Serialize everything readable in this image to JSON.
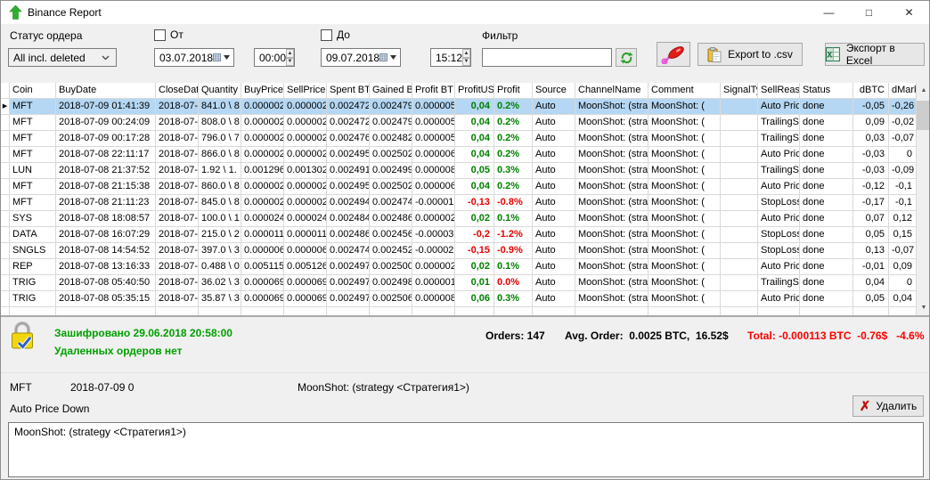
{
  "window": {
    "title": "Binance Report"
  },
  "toolbar": {
    "status_label": "Статус ордера",
    "status_value": "All incl. deleted",
    "from_label": "От",
    "from_date": "03.07.2018",
    "from_time": "00:00",
    "to_label": "До",
    "to_date": "09.07.2018",
    "to_time": "15:12",
    "filter_label": "Фильтр",
    "filter_value": "",
    "export_csv_label": "Export to .csv",
    "export_excel_label": "Экспорт в Excel"
  },
  "table": {
    "columns": [
      "Coin",
      "BuyDate",
      "CloseDat",
      "Quantity",
      "BuyPrice",
      "SellPrice",
      "Spent BT",
      "Gained B",
      "Profit BT",
      "ProfitUSI",
      "Profit",
      "Source",
      "ChannelName",
      "Comment",
      "SignalTyp",
      "SellReaso",
      "Status",
      "dBTC",
      "dMarke"
    ],
    "rows": [
      {
        "selected": true,
        "coin": "MFT",
        "buy_date": "2018-07-09 01:41:39",
        "close_date": "2018-07-",
        "quantity": "841.0 \\ 8",
        "buy_price": "0.000002",
        "sell_price": "0.000002",
        "spent_btc": "0.002472",
        "gained_btc": "0.002479",
        "profit_btc": "0.000005",
        "profit_usd": "0,04",
        "profit_pct": "0.2%",
        "usd_neg": false,
        "pct_neg": false,
        "source": "Auto",
        "channel": "MoonShot: (strat",
        "comment": "MoonShot: (",
        "signal_type": "",
        "sell_reason": "Auto Pric",
        "status": "done",
        "d_btc": "-0,05",
        "d_market": "-0,26"
      },
      {
        "selected": false,
        "coin": "MFT",
        "buy_date": "2018-07-09 00:24:09",
        "close_date": "2018-07-",
        "quantity": "808.0 \\ 8",
        "buy_price": "0.000002",
        "sell_price": "0.000002",
        "spent_btc": "0.002472",
        "gained_btc": "0.002479",
        "profit_btc": "0.000005",
        "profit_usd": "0,04",
        "profit_pct": "0.2%",
        "usd_neg": false,
        "pct_neg": false,
        "source": "Auto",
        "channel": "MoonShot: (strat",
        "comment": "MoonShot: (",
        "signal_type": "",
        "sell_reason": "TrailingSt",
        "status": "done",
        "d_btc": "0,09",
        "d_market": "-0,02"
      },
      {
        "selected": false,
        "coin": "MFT",
        "buy_date": "2018-07-09 00:17:28",
        "close_date": "2018-07-",
        "quantity": "796.0 \\ 7",
        "buy_price": "0.000002",
        "sell_price": "0.000002",
        "spent_btc": "0.002476",
        "gained_btc": "0.002482",
        "profit_btc": "0.000005",
        "profit_usd": "0,04",
        "profit_pct": "0.2%",
        "usd_neg": false,
        "pct_neg": false,
        "source": "Auto",
        "channel": "MoonShot: (strat",
        "comment": "MoonShot: (",
        "signal_type": "",
        "sell_reason": "TrailingSt",
        "status": "done",
        "d_btc": "0,03",
        "d_market": "-0,07"
      },
      {
        "selected": false,
        "coin": "MFT",
        "buy_date": "2018-07-08 22:11:17",
        "close_date": "2018-07-",
        "quantity": "866.0 \\ 8",
        "buy_price": "0.000002",
        "sell_price": "0.000002",
        "spent_btc": "0.002495",
        "gained_btc": "0.002502",
        "profit_btc": "0.000006",
        "profit_usd": "0,04",
        "profit_pct": "0.2%",
        "usd_neg": false,
        "pct_neg": false,
        "source": "Auto",
        "channel": "MoonShot: (strat",
        "comment": "MoonShot: (",
        "signal_type": "",
        "sell_reason": "Auto Pric",
        "status": "done",
        "d_btc": "-0,03",
        "d_market": "0"
      },
      {
        "selected": false,
        "coin": "LUN",
        "buy_date": "2018-07-08 21:37:52",
        "close_date": "2018-07-",
        "quantity": "1.92 \\ 1.",
        "buy_price": "0.001296",
        "sell_price": "0.001302",
        "spent_btc": "0.002491",
        "gained_btc": "0.002499",
        "profit_btc": "0.000008",
        "profit_usd": "0,05",
        "profit_pct": "0.3%",
        "usd_neg": false,
        "pct_neg": false,
        "source": "Auto",
        "channel": "MoonShot: (strat",
        "comment": "MoonShot: (",
        "signal_type": "",
        "sell_reason": "TrailingSt",
        "status": "done",
        "d_btc": "-0,03",
        "d_market": "-0,09"
      },
      {
        "selected": false,
        "coin": "MFT",
        "buy_date": "2018-07-08 21:15:38",
        "close_date": "2018-07-",
        "quantity": "860.0 \\ 8",
        "buy_price": "0.000002",
        "sell_price": "0.000002",
        "spent_btc": "0.002495",
        "gained_btc": "0.002502",
        "profit_btc": "0.000006",
        "profit_usd": "0,04",
        "profit_pct": "0.2%",
        "usd_neg": false,
        "pct_neg": false,
        "source": "Auto",
        "channel": "MoonShot: (strat",
        "comment": "MoonShot: (",
        "signal_type": "",
        "sell_reason": "Auto Pric",
        "status": "done",
        "d_btc": "-0,12",
        "d_market": "-0,1"
      },
      {
        "selected": false,
        "coin": "MFT",
        "buy_date": "2018-07-08 21:11:23",
        "close_date": "2018-07-",
        "quantity": "845.0 \\ 8",
        "buy_price": "0.000002",
        "sell_price": "0.000002",
        "spent_btc": "0.002494",
        "gained_btc": "0.002474",
        "profit_btc": "-0.00001",
        "profit_usd": "-0,13",
        "profit_pct": "-0.8%",
        "usd_neg": true,
        "pct_neg": true,
        "source": "Auto",
        "channel": "MoonShot: (strat",
        "comment": "MoonShot: (",
        "signal_type": "",
        "sell_reason": "StopLoss",
        "status": "done",
        "d_btc": "-0,17",
        "d_market": "-0,1"
      },
      {
        "selected": false,
        "coin": "SYS",
        "buy_date": "2018-07-08 18:08:57",
        "close_date": "2018-07-",
        "quantity": "100.0 \\ 1",
        "buy_price": "0.000024",
        "sell_price": "0.000024",
        "spent_btc": "0.002484",
        "gained_btc": "0.002486",
        "profit_btc": "0.000002",
        "profit_usd": "0,02",
        "profit_pct": "0.1%",
        "usd_neg": false,
        "pct_neg": false,
        "source": "Auto",
        "channel": "MoonShot: (strat",
        "comment": "MoonShot: (",
        "signal_type": "",
        "sell_reason": "Auto Pric",
        "status": "done",
        "d_btc": "0,07",
        "d_market": "0,12"
      },
      {
        "selected": false,
        "coin": "DATA",
        "buy_date": "2018-07-08 16:07:29",
        "close_date": "2018-07-",
        "quantity": "215.0 \\ 2",
        "buy_price": "0.000011",
        "sell_price": "0.000011",
        "spent_btc": "0.002486",
        "gained_btc": "0.002456",
        "profit_btc": "-0.00003",
        "profit_usd": "-0,2",
        "profit_pct": "-1.2%",
        "usd_neg": true,
        "pct_neg": true,
        "source": "Auto",
        "channel": "MoonShot: (strat",
        "comment": "MoonShot: (",
        "signal_type": "",
        "sell_reason": "StopLoss",
        "status": "done",
        "d_btc": "0,05",
        "d_market": "0,15"
      },
      {
        "selected": false,
        "coin": "SNGLS",
        "buy_date": "2018-07-08 14:54:52",
        "close_date": "2018-07-",
        "quantity": "397.0 \\ 3",
        "buy_price": "0.000006",
        "sell_price": "0.000006",
        "spent_btc": "0.002474",
        "gained_btc": "0.002452",
        "profit_btc": "-0.00002",
        "profit_usd": "-0,15",
        "profit_pct": "-0.9%",
        "usd_neg": true,
        "pct_neg": true,
        "source": "Auto",
        "channel": "MoonShot: (strat",
        "comment": "MoonShot: (",
        "signal_type": "",
        "sell_reason": "StopLoss",
        "status": "done",
        "d_btc": "0,13",
        "d_market": "-0,07"
      },
      {
        "selected": false,
        "coin": "REP",
        "buy_date": "2018-07-08 13:16:33",
        "close_date": "2018-07-",
        "quantity": "0.488 \\ 0",
        "buy_price": "0.005115",
        "sell_price": "0.005126",
        "spent_btc": "0.002497",
        "gained_btc": "0.002500",
        "profit_btc": "0.000002",
        "profit_usd": "0,02",
        "profit_pct": "0.1%",
        "usd_neg": false,
        "pct_neg": false,
        "source": "Auto",
        "channel": "MoonShot: (strat",
        "comment": "MoonShot: (",
        "signal_type": "",
        "sell_reason": "Auto Pric",
        "status": "done",
        "d_btc": "-0,01",
        "d_market": "0,09"
      },
      {
        "selected": false,
        "coin": "TRIG",
        "buy_date": "2018-07-08 05:40:50",
        "close_date": "2018-07-",
        "quantity": "36.02 \\ 3",
        "buy_price": "0.000069",
        "sell_price": "0.000069",
        "spent_btc": "0.002497",
        "gained_btc": "0.002498",
        "profit_btc": "0.000001",
        "profit_usd": "0,01",
        "profit_pct": "0.0%",
        "usd_neg": false,
        "pct_neg": true,
        "source": "Auto",
        "channel": "MoonShot: (strat",
        "comment": "MoonShot: (",
        "signal_type": "",
        "sell_reason": "TrailingSt",
        "status": "done",
        "d_btc": "0,04",
        "d_market": "0"
      },
      {
        "selected": false,
        "coin": "TRIG",
        "buy_date": "2018-07-08 05:35:15",
        "close_date": "2018-07-",
        "quantity": "35.87 \\ 3",
        "buy_price": "0.000069",
        "sell_price": "0.000069",
        "spent_btc": "0.002497",
        "gained_btc": "0.002506",
        "profit_btc": "0.000008",
        "profit_usd": "0,06",
        "profit_pct": "0.3%",
        "usd_neg": false,
        "pct_neg": false,
        "source": "Auto",
        "channel": "MoonShot: (strat",
        "comment": "MoonShot: (",
        "signal_type": "",
        "sell_reason": "Auto Pric",
        "status": "done",
        "d_btc": "0,05",
        "d_market": "0,04"
      }
    ]
  },
  "summary": {
    "encrypted_line": "Зашифровано 29.06.2018 20:58:00",
    "deleted_line": "Удаленных ордеров нет",
    "orders_text": "Orders: 147",
    "avg_text": "Avg. Order:  0.0025 BTC,  16.52$",
    "total_text": "Total: -0.000113 BTC  -0.76$   -4.6%"
  },
  "detail": {
    "coin": "MFT",
    "date": "2018-07-09 0",
    "channel": "MoonShot: (strategy <Стратегия1>)",
    "sell_reason": "Auto Price Down",
    "delete_label": "Удалить",
    "comment_text": "MoonShot: (strategy <Стратегия1>)"
  },
  "colors": {
    "selection": "#b5d7f3",
    "profit_green": "#008000",
    "loss_red": "#e60000",
    "status_green": "#00a000",
    "total_red": "#ff0000"
  }
}
